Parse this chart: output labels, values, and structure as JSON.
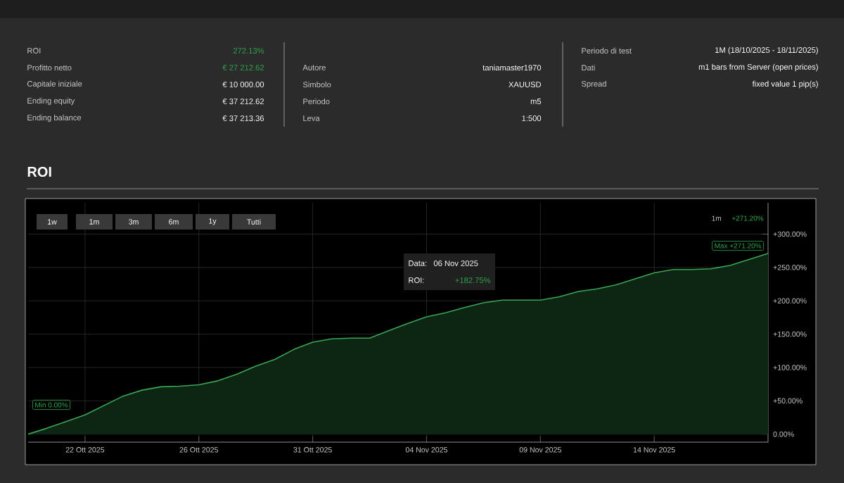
{
  "chart_data": {
    "type": "area",
    "title": "ROI",
    "categories": [
      null,
      null,
      null,
      "22 Ott 2025",
      null,
      null,
      null,
      null,
      null,
      "26 Ott 2025",
      null,
      null,
      null,
      null,
      null,
      "31 Ott 2025",
      null,
      null,
      null,
      null,
      null,
      "04 Nov 2025",
      null,
      null,
      null,
      null,
      null,
      "09 Nov 2025",
      null,
      null,
      null,
      null,
      null,
      "14 Nov 2025",
      null,
      null,
      null,
      null,
      null,
      null
    ],
    "series": [
      {
        "color": "#3aa655",
        "values": [
          0,
          9,
          19,
          29,
          43,
          57,
          66,
          71,
          72,
          74,
          80,
          90,
          102,
          112,
          127,
          138,
          143,
          144,
          144,
          155,
          166,
          176,
          182,
          190,
          197,
          201,
          201,
          201,
          206,
          214,
          218,
          224,
          233,
          242,
          247,
          247,
          248,
          253,
          262,
          271
        ]
      }
    ],
    "ylim": [
      -12,
      347
    ],
    "yticks": [
      {
        "value": 0,
        "label": "0.00%"
      },
      {
        "value": 50,
        "label": "+50.00%"
      },
      {
        "value": 100,
        "label": "+100.00%"
      },
      {
        "value": 150,
        "label": "+150.00%"
      },
      {
        "value": 200,
        "label": "+200.00%"
      },
      {
        "value": 250,
        "label": "+250.00%"
      },
      {
        "value": 300,
        "label": "+300.00%"
      }
    ],
    "grid": true,
    "annotations": [
      "ROI",
      "272.13%",
      "Profitto netto",
      "€ 27 212.62",
      "Capitale iniziale",
      "€ 10 000.00",
      "Ending equity",
      "€ 37 212.62",
      "Ending balance",
      "€ 37 213.36",
      "Autore",
      "taniamaster1970",
      "Simbolo",
      "XAUUSD",
      "Periodo",
      "m5",
      "Leva",
      "1:500",
      "Periodo di test",
      "1M (18/10/2025 - 18/11/2025)",
      "Dati",
      "m1 bars from Server (open prices)",
      "Spread",
      "fixed value 1 pip(s)",
      "1w",
      "1m",
      "3m",
      "6m",
      "1y",
      "Tutti",
      "Data:",
      "06 Nov 2025",
      "ROI:",
      "+182.75%",
      "Min 0.00%",
      "Max +271.20%",
      "1m",
      "+271.20%"
    ]
  }
}
